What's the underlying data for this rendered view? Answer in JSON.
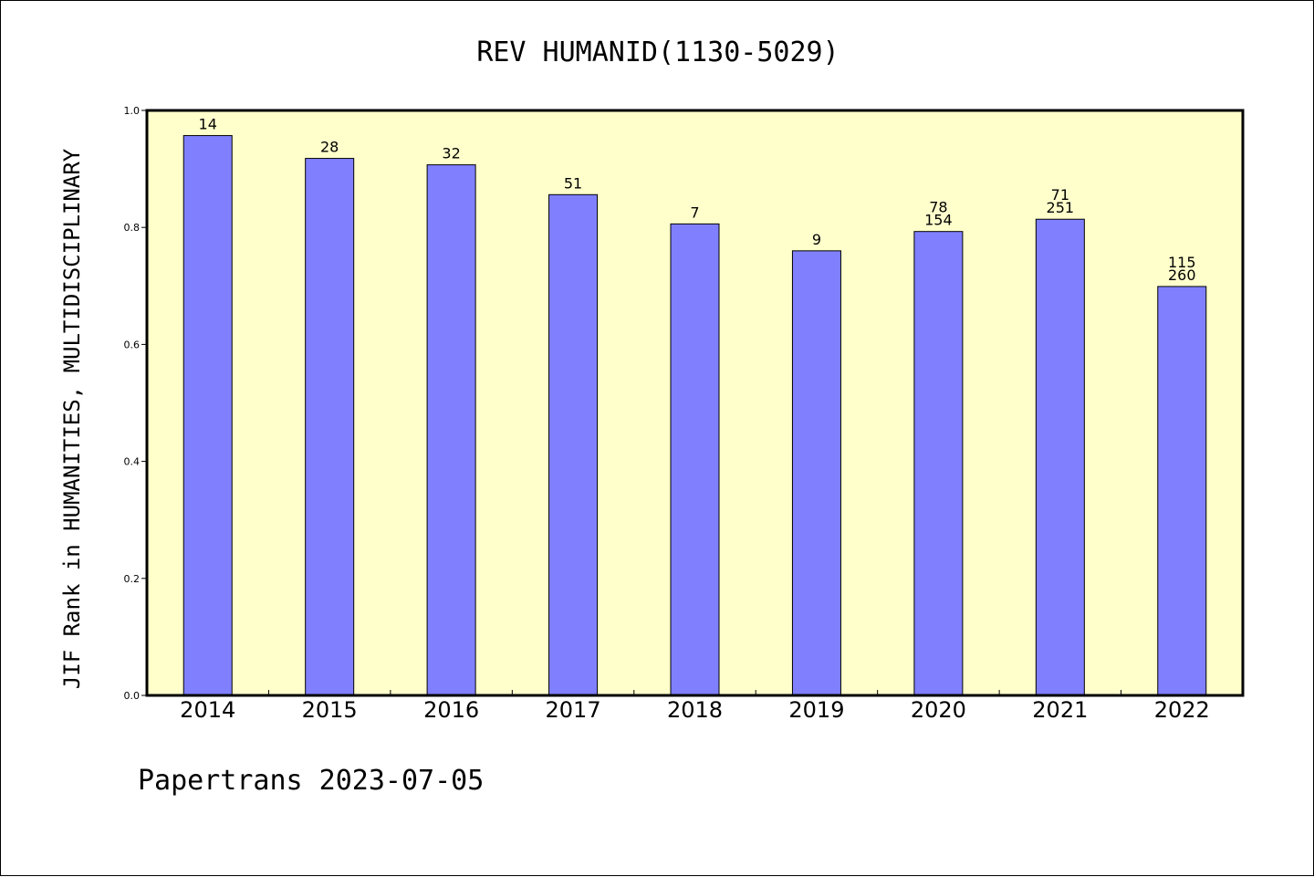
{
  "chart_data": {
    "type": "bar",
    "title": "REV HUMANID(1130-5029)",
    "xlabel": "",
    "ylabel": "JIF Rank in HUMANITIES, MULTIDISCIPLINARY",
    "categories": [
      "2014",
      "2015",
      "2016",
      "2017",
      "2018",
      "2019",
      "2020",
      "2021",
      "2022"
    ],
    "values": [
      0.957,
      0.918,
      0.907,
      0.856,
      0.806,
      0.76,
      0.793,
      0.814,
      0.699
    ],
    "annotations": [
      [
        "14"
      ],
      [
        "28"
      ],
      [
        "32"
      ],
      [
        "51"
      ],
      [
        "7"
      ],
      [
        "9"
      ],
      [
        "78",
        "154"
      ],
      [
        "71",
        "251"
      ],
      [
        "115",
        "260"
      ]
    ],
    "ylim": [
      0,
      1.0
    ],
    "yticks": [
      "0.0",
      "0.2",
      "0.4",
      "0.6",
      "0.8",
      "1.0"
    ],
    "grid": false,
    "legend": "none",
    "colors": {
      "plot_background": "#ffffcc",
      "bar_fill": "#8080ff",
      "bar_stroke": "#000000"
    }
  },
  "footer": {
    "text": "Papertrans 2023-07-05"
  }
}
